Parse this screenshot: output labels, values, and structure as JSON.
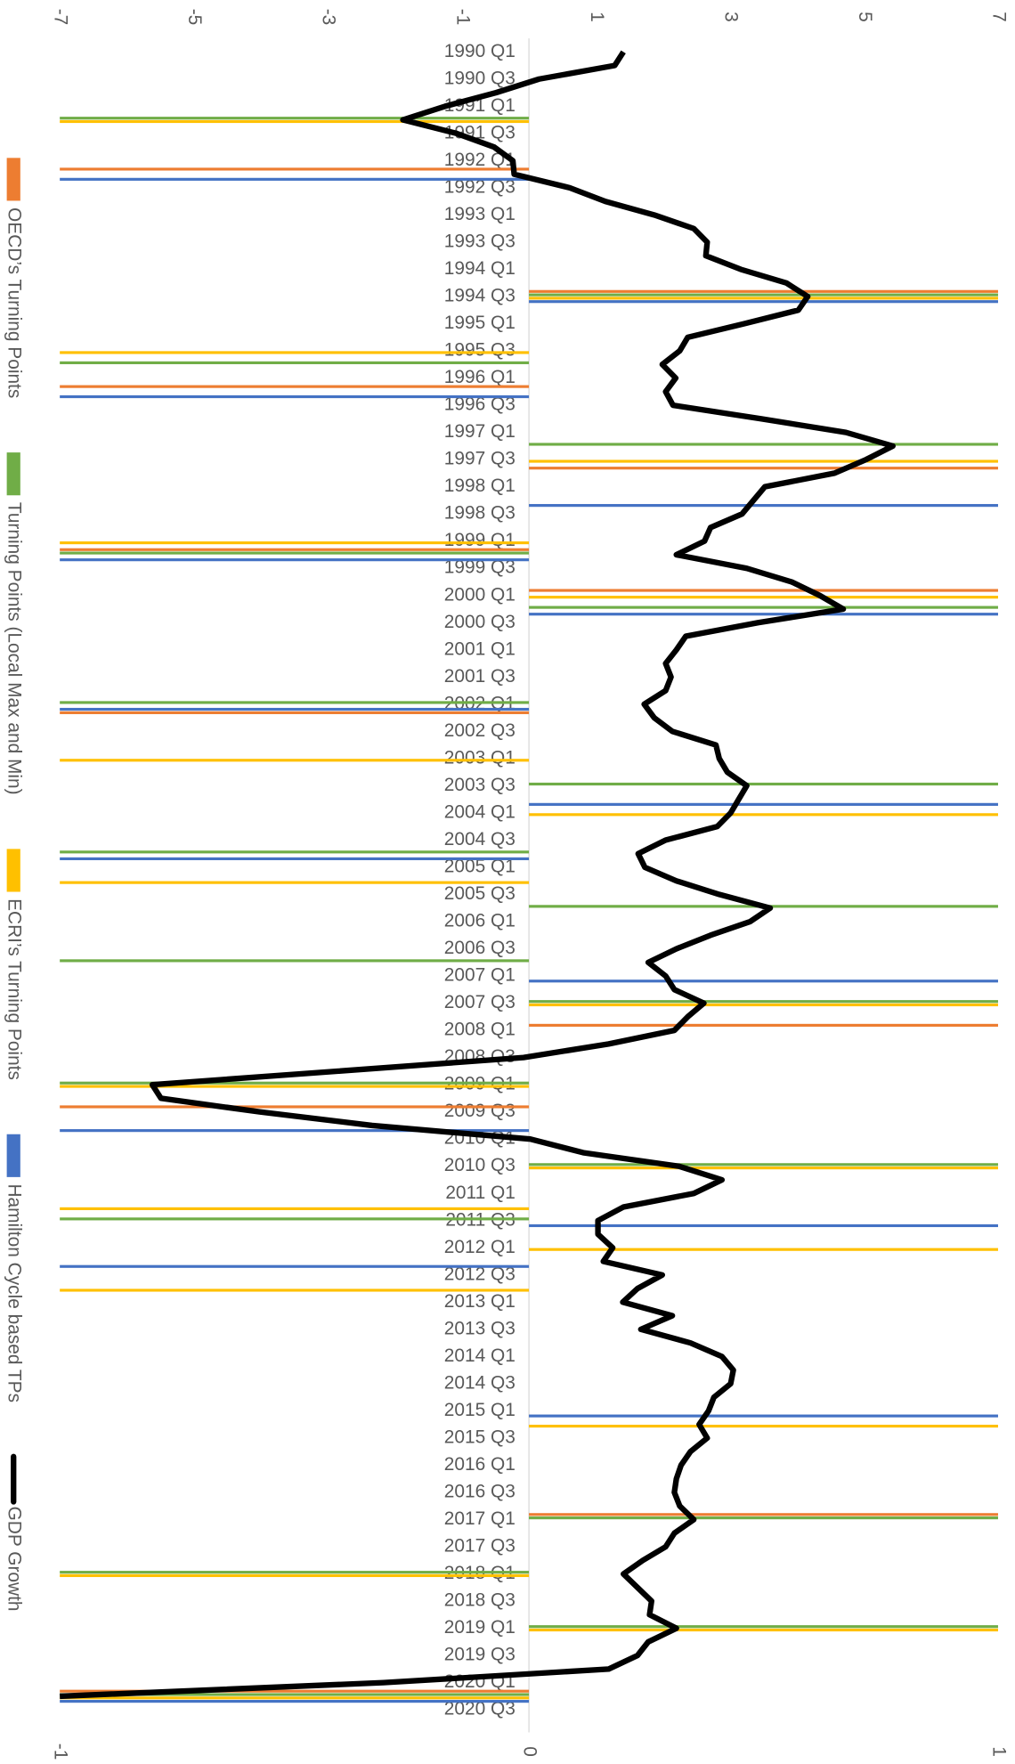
{
  "chart_data": {
    "type": "combo",
    "orientation": "horizontal",
    "grid": false,
    "legend": "left",
    "categories": [
      "1990 Q1",
      null,
      "1990 Q3",
      null,
      "1991 Q1",
      null,
      "1991 Q3",
      null,
      "1992 Q1",
      null,
      "1992 Q3",
      null,
      "1993 Q1",
      null,
      "1993 Q3",
      null,
      "1994 Q1",
      null,
      "1994 Q3",
      null,
      "1995 Q1",
      null,
      "1995 Q3",
      null,
      "1996 Q1",
      null,
      "1996 Q3",
      null,
      "1997 Q1",
      null,
      "1997 Q3",
      null,
      "1998 Q1",
      null,
      "1998 Q3",
      null,
      "1999 Q1",
      null,
      "1999 Q3",
      null,
      "2000 Q1",
      null,
      "2000 Q3",
      null,
      "2001 Q1",
      null,
      "2001 Q3",
      null,
      "2002 Q1",
      null,
      "2002 Q3",
      null,
      "2003 Q1",
      null,
      "2003 Q3",
      null,
      "2004 Q1",
      null,
      "2004 Q3",
      null,
      "2005 Q1",
      null,
      "2005 Q3",
      null,
      "2006 Q1",
      null,
      "2006 Q3",
      null,
      "2007 Q1",
      null,
      "2007 Q3",
      null,
      "2008 Q1",
      null,
      "2008 Q3",
      null,
      "2009 Q1",
      null,
      "2009 Q3",
      null,
      "2010 Q1",
      null,
      "2010 Q3",
      null,
      "2011 Q1",
      null,
      "2011 Q3",
      null,
      "2012 Q1",
      null,
      "2012 Q3",
      null,
      "2013 Q1",
      null,
      "2013 Q3",
      null,
      "2014 Q1",
      null,
      "2014 Q3",
      null,
      "2015 Q1",
      null,
      "2015 Q3",
      null,
      "2016 Q1",
      null,
      "2016 Q3",
      null,
      "2017 Q1",
      null,
      "2017 Q3",
      null,
      "2018 Q1",
      null,
      "2018 Q3",
      null,
      "2019 Q1",
      null,
      "2019 Q3",
      null,
      "2020 Q1",
      null,
      "2020 Q3"
    ],
    "ylim": [
      -7,
      7
    ],
    "yticks": [
      -7,
      -5,
      -3,
      -1,
      1,
      3,
      5,
      7
    ],
    "y2lim": [
      -1,
      1
    ],
    "y2ticks": [
      -1,
      0,
      1
    ],
    "series": [
      {
        "name": "OECD’s Turning Points",
        "type": "bar",
        "axis": "y2",
        "color": "#ED7D31",
        "values": [
          null,
          null,
          null,
          null,
          null,
          null,
          null,
          null,
          null,
          -1,
          null,
          null,
          null,
          null,
          null,
          null,
          null,
          null,
          1,
          null,
          null,
          null,
          null,
          null,
          null,
          -1,
          null,
          null,
          null,
          null,
          null,
          1,
          null,
          null,
          null,
          null,
          null,
          -1,
          null,
          null,
          1,
          null,
          null,
          null,
          null,
          null,
          null,
          null,
          null,
          -1,
          null,
          null,
          null,
          null,
          null,
          null,
          null,
          null,
          null,
          null,
          null,
          null,
          null,
          null,
          null,
          null,
          null,
          null,
          null,
          null,
          null,
          null,
          1,
          null,
          null,
          null,
          null,
          null,
          -1,
          null,
          null,
          null,
          null,
          null,
          null,
          null,
          null,
          null,
          null,
          null,
          null,
          null,
          null,
          null,
          null,
          null,
          null,
          null,
          null,
          null,
          null,
          null,
          null,
          null,
          null,
          null,
          null,
          null,
          1,
          null,
          null,
          null,
          null,
          null,
          null,
          null,
          null,
          null,
          null,
          null,
          null,
          -1,
          null
        ]
      },
      {
        "name": "Turning Points (Local Max and Min)",
        "type": "bar",
        "axis": "y2",
        "color": "#70AD47",
        "values": [
          null,
          null,
          null,
          null,
          null,
          -1,
          null,
          null,
          null,
          null,
          null,
          null,
          null,
          null,
          null,
          null,
          null,
          null,
          1,
          null,
          null,
          null,
          null,
          -1,
          null,
          null,
          null,
          null,
          null,
          1,
          null,
          null,
          null,
          null,
          null,
          null,
          null,
          -1,
          null,
          null,
          null,
          1,
          null,
          null,
          null,
          null,
          null,
          null,
          -1,
          null,
          null,
          null,
          null,
          null,
          1,
          null,
          null,
          null,
          null,
          -1,
          null,
          null,
          null,
          1,
          null,
          null,
          null,
          -1,
          null,
          null,
          1,
          null,
          null,
          null,
          null,
          null,
          -1,
          null,
          null,
          null,
          null,
          null,
          1,
          null,
          null,
          null,
          -1,
          null,
          null,
          null,
          null,
          null,
          null,
          null,
          null,
          null,
          null,
          null,
          null,
          null,
          null,
          null,
          null,
          null,
          null,
          null,
          null,
          null,
          1,
          null,
          null,
          null,
          -1,
          null,
          null,
          null,
          1,
          null,
          null,
          null,
          null,
          -1,
          null
        ]
      },
      {
        "name": "ECRI’s Turning Points",
        "type": "bar",
        "axis": "y2",
        "color": "#FFC000",
        "values": [
          null,
          null,
          null,
          null,
          null,
          -1,
          null,
          null,
          null,
          null,
          null,
          null,
          null,
          null,
          null,
          null,
          null,
          null,
          1,
          null,
          null,
          null,
          -1,
          null,
          null,
          null,
          null,
          null,
          null,
          null,
          1,
          null,
          null,
          null,
          null,
          null,
          -1,
          null,
          null,
          null,
          1,
          null,
          null,
          null,
          null,
          null,
          null,
          null,
          null,
          null,
          null,
          null,
          -1,
          null,
          null,
          null,
          1,
          null,
          null,
          null,
          null,
          -1,
          null,
          null,
          null,
          null,
          null,
          null,
          null,
          null,
          1,
          null,
          null,
          null,
          null,
          null,
          -1,
          null,
          null,
          null,
          null,
          null,
          1,
          null,
          null,
          -1,
          null,
          null,
          1,
          null,
          null,
          -1,
          null,
          null,
          null,
          null,
          null,
          null,
          null,
          null,
          null,
          1,
          null,
          null,
          null,
          null,
          null,
          null,
          null,
          null,
          null,
          null,
          -1,
          null,
          null,
          null,
          1,
          null,
          null,
          null,
          null,
          -1,
          null
        ]
      },
      {
        "name": "Hamilton Cycle based TPs",
        "type": "bar",
        "axis": "y2",
        "color": "#4472C4",
        "values": [
          null,
          null,
          null,
          null,
          null,
          null,
          null,
          null,
          null,
          -1,
          null,
          null,
          null,
          null,
          null,
          null,
          null,
          null,
          1,
          null,
          null,
          null,
          null,
          null,
          null,
          -1,
          null,
          null,
          null,
          null,
          null,
          null,
          null,
          1,
          null,
          null,
          null,
          -1,
          null,
          null,
          null,
          1,
          null,
          null,
          null,
          null,
          null,
          null,
          -1,
          null,
          null,
          null,
          null,
          null,
          null,
          1,
          null,
          null,
          null,
          -1,
          null,
          null,
          null,
          null,
          null,
          null,
          null,
          null,
          1,
          null,
          null,
          null,
          null,
          null,
          null,
          null,
          null,
          null,
          null,
          -1,
          null,
          null,
          null,
          null,
          null,
          null,
          1,
          null,
          null,
          -1,
          null,
          null,
          null,
          null,
          null,
          null,
          null,
          null,
          null,
          null,
          1,
          null,
          null,
          null,
          null,
          null,
          null,
          null,
          null,
          null,
          null,
          null,
          null,
          null,
          null,
          null,
          null,
          null,
          null,
          null,
          null,
          -1,
          null
        ]
      },
      {
        "name": "GDP Growth",
        "type": "line",
        "color": "#000000",
        "values": [
          1.41,
          1.28,
          0.15,
          -0.49,
          -1.25,
          -1.88,
          -1.08,
          -0.52,
          -0.24,
          -0.22,
          0.61,
          1.14,
          1.87,
          2.46,
          2.66,
          2.64,
          3.16,
          3.84,
          4.16,
          4.02,
          3.21,
          2.37,
          2.25,
          1.99,
          2.19,
          2.04,
          2.15,
          3.47,
          4.73,
          5.43,
          5.03,
          4.56,
          3.52,
          3.35,
          3.18,
          2.71,
          2.62,
          2.2,
          3.25,
          3.92,
          4.34,
          4.69,
          3.42,
          2.34,
          2.2,
          2.04,
          2.12,
          2.04,
          1.72,
          1.87,
          2.14,
          2.79,
          2.84,
          2.96,
          3.25,
          3.13,
          3.01,
          2.81,
          2.04,
          1.63,
          1.73,
          2.2,
          2.84,
          3.6,
          3.3,
          2.71,
          2.2,
          1.78,
          2.04,
          2.17,
          2.61,
          2.37,
          2.17,
          1.19,
          -0.08,
          -2.84,
          -5.62,
          -5.49,
          -4.02,
          -2.34,
          0.02,
          0.81,
          2.24,
          2.88,
          2.46,
          1.41,
          1.03,
          1.03,
          1.25,
          1.11,
          1.99,
          1.62,
          1.4,
          2.14,
          1.67,
          2.41,
          2.88,
          3.05,
          3.01,
          2.76,
          2.68,
          2.54,
          2.66,
          2.41,
          2.27,
          2.2,
          2.17,
          2.25,
          2.46,
          2.17,
          2.04,
          1.7,
          1.41,
          1.62,
          1.83,
          1.8,
          2.2,
          1.78,
          1.62,
          1.19,
          -2.17,
          -7,
          null
        ]
      }
    ]
  }
}
